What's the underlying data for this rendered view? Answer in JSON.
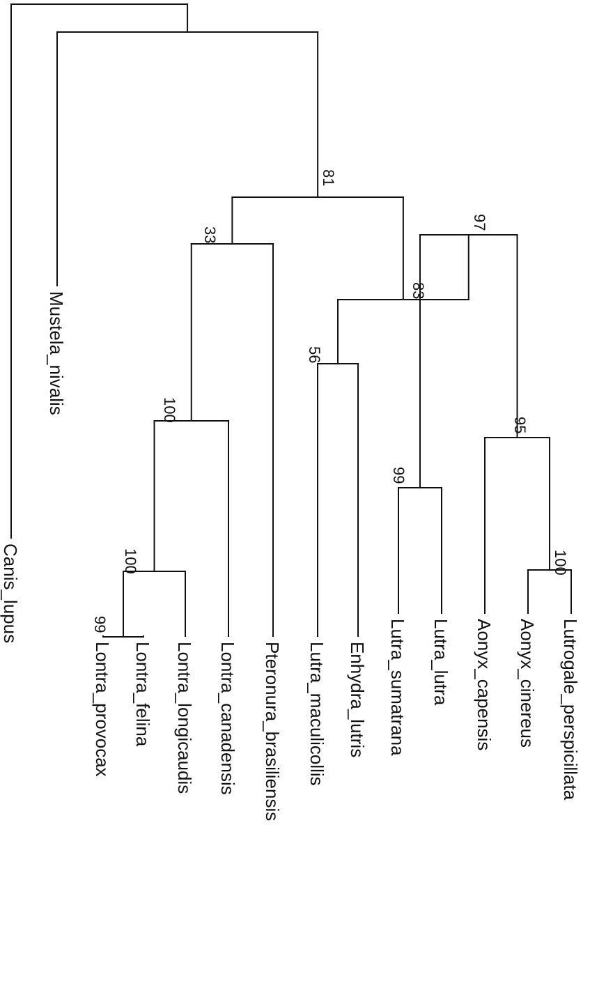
{
  "tree": {
    "orientation": "rotated-90-clockwise",
    "tips": [
      {
        "id": "canis",
        "label": "Canis_lupus"
      },
      {
        "id": "mustela",
        "label": "Mustela_nivalis"
      },
      {
        "id": "provocax",
        "label": "Lontra_provocax"
      },
      {
        "id": "felina",
        "label": "Lontra_felina"
      },
      {
        "id": "longicaudis",
        "label": "Lontra_longicaudis"
      },
      {
        "id": "canadensis",
        "label": "Lontra_canadensis"
      },
      {
        "id": "pteronura",
        "label": "Pteronura_brasiliensis"
      },
      {
        "id": "maculicollis",
        "label": "Lutra_maculicollis"
      },
      {
        "id": "enhydra",
        "label": "Enhydra_lutris"
      },
      {
        "id": "sumatrana",
        "label": "Lutra_sumatrana"
      },
      {
        "id": "lutra",
        "label": "Lutra_lutra"
      },
      {
        "id": "capensis",
        "label": "Aonyx_capensis"
      },
      {
        "id": "cinereus",
        "label": "Aonyx_cinereus"
      },
      {
        "id": "perspicillata",
        "label": "Lutrogale_perspicillata"
      }
    ],
    "clades": [
      {
        "id": "n_root",
        "children": [
          "canis",
          "n_mus"
        ],
        "support": ""
      },
      {
        "id": "n_mus",
        "children": [
          "mustela",
          "n81"
        ],
        "support": ""
      },
      {
        "id": "n81",
        "children": [
          "n33",
          "n83"
        ],
        "support": "81"
      },
      {
        "id": "n33",
        "children": [
          "n100a",
          "pteronura"
        ],
        "support": "33"
      },
      {
        "id": "n100a",
        "children": [
          "n100b",
          "canadensis"
        ],
        "support": "100"
      },
      {
        "id": "n100b",
        "children": [
          "n99a",
          "longicaudis"
        ],
        "support": "100"
      },
      {
        "id": "n99a",
        "children": [
          "provocax",
          "felina"
        ],
        "support": "99"
      },
      {
        "id": "n83",
        "children": [
          "n56",
          "n97"
        ],
        "support": "83"
      },
      {
        "id": "n56",
        "children": [
          "maculicollis",
          "enhydra"
        ],
        "support": "56"
      },
      {
        "id": "n97",
        "children": [
          "n99b",
          "n95"
        ],
        "support": "97"
      },
      {
        "id": "n99b",
        "children": [
          "sumatrana",
          "lutra"
        ],
        "support": "99"
      },
      {
        "id": "n95",
        "children": [
          "capensis",
          "n100c"
        ],
        "support": "95"
      },
      {
        "id": "n100c",
        "children": [
          "cinereus",
          "perspicillata"
        ],
        "support": "100"
      }
    ]
  }
}
